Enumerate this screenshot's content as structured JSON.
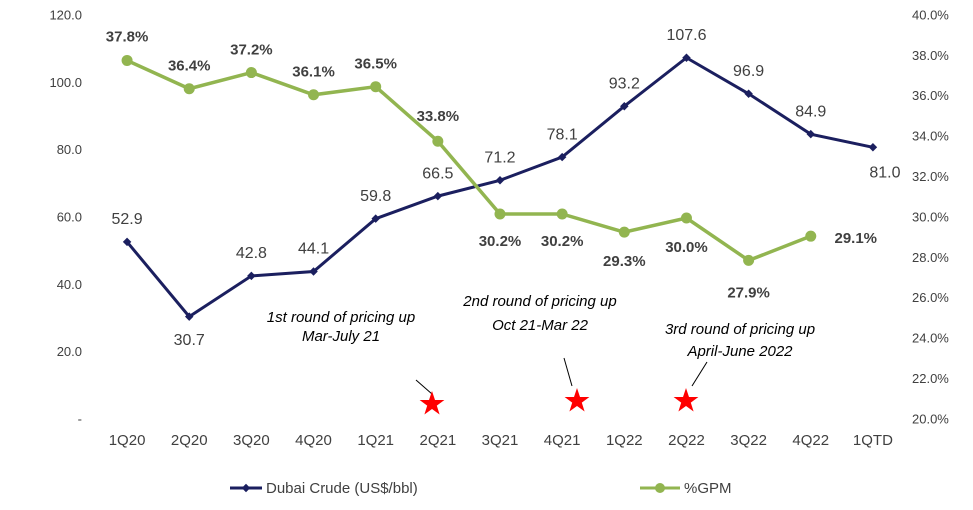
{
  "chart_data": {
    "type": "line",
    "categories": [
      "1Q20",
      "2Q20",
      "3Q20",
      "4Q20",
      "1Q21",
      "2Q21",
      "3Q21",
      "4Q21",
      "1Q22",
      "2Q22",
      "3Q22",
      "4Q22",
      "1QTD"
    ],
    "series": [
      {
        "name": "Dubai Crude (US$/bbl)",
        "color": "#1b1f5f",
        "axis": "y",
        "values": [
          52.9,
          30.7,
          42.8,
          44.1,
          59.8,
          66.5,
          71.2,
          78.1,
          93.2,
          107.6,
          96.9,
          84.9,
          81.0
        ],
        "value_labels": [
          "52.9",
          "30.7",
          "42.8",
          "44.1",
          "59.8",
          "66.5",
          "71.2",
          "78.1",
          "93.2",
          "107.6",
          "96.9",
          "84.9",
          "81.0"
        ]
      },
      {
        "name": "%GPM",
        "color": "#92b550",
        "axis": "y2",
        "values": [
          37.8,
          36.4,
          37.2,
          36.1,
          36.5,
          33.8,
          30.2,
          30.2,
          29.3,
          30.0,
          27.9,
          29.1,
          null
        ],
        "value_labels": [
          "37.8%",
          "36.4%",
          "37.2%",
          "36.1%",
          "36.5%",
          "33.8%",
          "30.2%",
          "30.2%",
          "29.3%",
          "30.0%",
          "27.9%",
          "29.1%",
          null
        ]
      }
    ],
    "ylim": [
      0,
      120
    ],
    "yticks": [
      {
        "value": 0,
        "label": "-"
      },
      {
        "value": 20,
        "label": "20.0"
      },
      {
        "value": 40,
        "label": "40.0"
      },
      {
        "value": 60,
        "label": "60.0"
      },
      {
        "value": 80,
        "label": "80.0"
      },
      {
        "value": 100,
        "label": "100.0"
      },
      {
        "value": 120,
        "label": "120.0"
      }
    ],
    "y2lim": [
      20,
      40
    ],
    "y2ticks": [
      {
        "value": 20,
        "label": "20.0%"
      },
      {
        "value": 22,
        "label": "22.0%"
      },
      {
        "value": 24,
        "label": "24.0%"
      },
      {
        "value": 26,
        "label": "26.0%"
      },
      {
        "value": 28,
        "label": "28.0%"
      },
      {
        "value": 30,
        "label": "30.0%"
      },
      {
        "value": 32,
        "label": "32.0%"
      },
      {
        "value": 34,
        "label": "34.0%"
      },
      {
        "value": 36,
        "label": "36.0%"
      },
      {
        "value": 38,
        "label": "38.0%"
      },
      {
        "value": 40,
        "label": "40.0%"
      }
    ],
    "annotations": [
      [
        "1st round of pricing up",
        "Mar-July 21"
      ],
      [
        "2nd round of pricing up",
        "Oct 21-Mar 22"
      ],
      [
        "3rd round of pricing up",
        "April-June 2022"
      ]
    ],
    "legend": "bottom"
  }
}
